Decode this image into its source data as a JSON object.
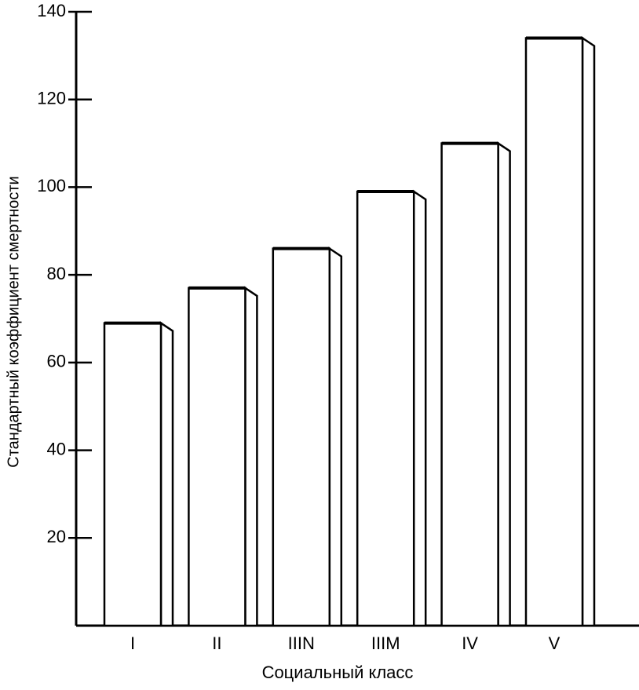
{
  "chart_data": {
    "type": "bar",
    "categories": [
      "I",
      "II",
      "IIIN",
      "IIIM",
      "IV",
      "V"
    ],
    "values": [
      69,
      77,
      86,
      99,
      110,
      134
    ],
    "color": "#ffffff",
    "ylim": [
      0,
      140
    ],
    "yticks": [
      20,
      40,
      60,
      80,
      100,
      120,
      140
    ],
    "ylabel": "Стандартный коэффициент смертности",
    "xlabel": "Социальный класс"
  }
}
